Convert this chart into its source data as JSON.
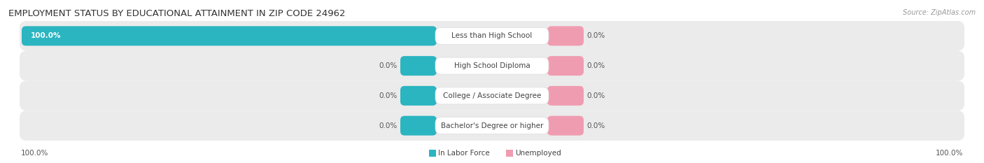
{
  "title": "EMPLOYMENT STATUS BY EDUCATIONAL ATTAINMENT IN ZIP CODE 24962",
  "source": "Source: ZipAtlas.com",
  "categories": [
    "Less than High School",
    "High School Diploma",
    "College / Associate Degree",
    "Bachelor's Degree or higher"
  ],
  "labor_force_values": [
    100.0,
    0.0,
    0.0,
    0.0
  ],
  "unemployed_values": [
    0.0,
    0.0,
    0.0,
    0.0
  ],
  "labor_force_color": "#2ab5c1",
  "unemployed_color": "#f09cb0",
  "row_bg_color": "#ebebeb",
  "x_left_label": "100.0%",
  "x_right_label": "100.0%",
  "title_fontsize": 9.5,
  "source_fontsize": 7,
  "label_fontsize": 7.5,
  "value_fontsize": 7.5
}
